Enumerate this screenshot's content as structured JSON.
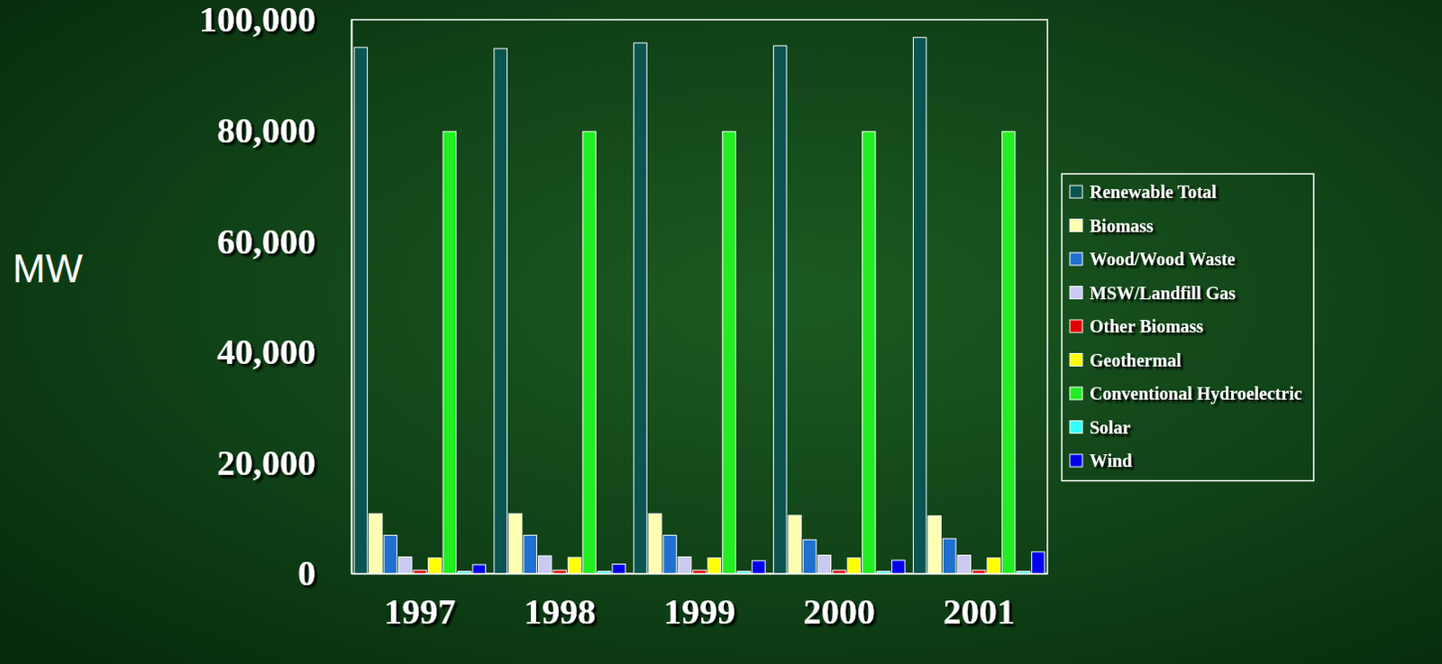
{
  "chart_data": {
    "type": "bar",
    "y_label": "MW",
    "categories": [
      "1997",
      "1998",
      "1999",
      "2000",
      "2001"
    ],
    "series": [
      {
        "name": "Renewable Total",
        "color": "#0b5450",
        "values": [
          95000,
          94800,
          95800,
          95300,
          96800
        ]
      },
      {
        "name": "Biomass",
        "color": "#ffffb3",
        "values": [
          10800,
          10800,
          10800,
          10500,
          10400
        ]
      },
      {
        "name": "Wood/Wood Waste",
        "color": "#1f70d0",
        "values": [
          6900,
          6900,
          6900,
          6100,
          6300
        ]
      },
      {
        "name": "MSW/Landfill Gas",
        "color": "#c9c9f2",
        "values": [
          3000,
          3200,
          3000,
          3300,
          3300
        ]
      },
      {
        "name": "Other Biomass",
        "color": "#e00000",
        "values": [
          600,
          600,
          600,
          600,
          600
        ]
      },
      {
        "name": "Geothermal",
        "color": "#ffff00",
        "values": [
          2800,
          2900,
          2800,
          2800,
          2800
        ]
      },
      {
        "name": "Conventional Hydroelectric",
        "color": "#22ee22",
        "values": [
          79800,
          79800,
          79800,
          79800,
          79800
        ]
      },
      {
        "name": "Solar",
        "color": "#33ffff",
        "values": [
          400,
          400,
          400,
          400,
          400
        ]
      },
      {
        "name": "Wind",
        "color": "#0000ee",
        "values": [
          1600,
          1700,
          2300,
          2400,
          3900
        ]
      }
    ],
    "ylim": [
      0,
      100000
    ],
    "yticks": [
      0,
      {
        "value": 20000,
        "label": "20,000"
      },
      {
        "value": 40000,
        "label": "40,000"
      },
      {
        "value": 60000,
        "label": "60,000"
      },
      {
        "value": 80000,
        "label": "80,000"
      },
      {
        "value": 100000,
        "label": "100,000"
      }
    ],
    "grid": false,
    "legend": "right"
  }
}
